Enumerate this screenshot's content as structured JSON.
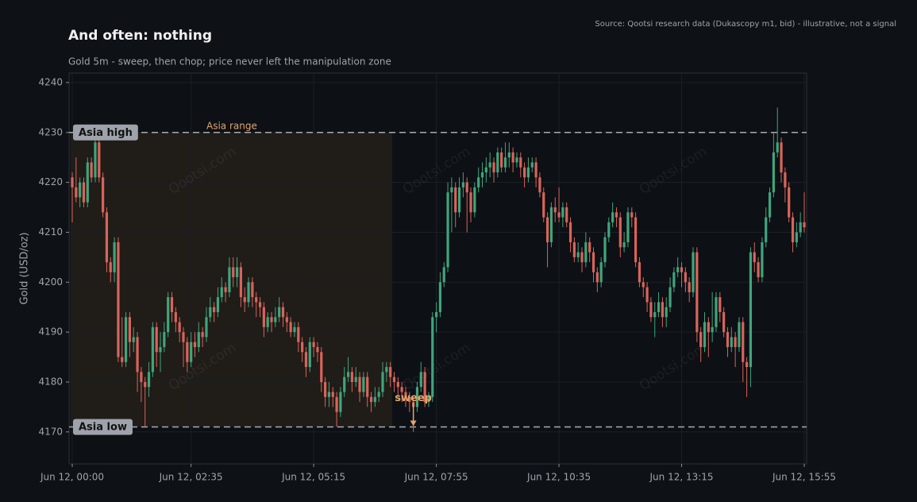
{
  "chart_data": {
    "type": "candlestick",
    "title": "And often: nothing",
    "subtitle": "Gold 5m - sweep, then chop; price never left the manipulation zone",
    "source": "Source: Qootsi research data (Dukascopy m1, bid) - illustrative, not a signal",
    "y_label": "Gold (USD/oz)",
    "watermark": "Qootsi.com",
    "up_color": "#3fa57c",
    "down_color": "#d9645a",
    "grid": true,
    "ylim": [
      4163.6,
      4241.9
    ],
    "yticks": [
      4170,
      4180,
      4190,
      4200,
      4210,
      4220,
      4230,
      4240
    ],
    "xticks": [
      "Jun 12, 00:00",
      "Jun 12, 02:35",
      "Jun 12, 05:15",
      "Jun 12, 07:55",
      "Jun 12, 10:35",
      "Jun 12, 13:15",
      "Jun 12, 15:55"
    ],
    "levels": [
      {
        "label": "Asia high",
        "value": 4230
      },
      {
        "label": "Asia low",
        "value": 4171
      }
    ],
    "shaded_range": {
      "label": "Asia range",
      "start": "Jun 12, 00:00",
      "end": "Jun 12, 07:00"
    },
    "annotations": [
      {
        "text": "sweep",
        "x": "Jun 12, 07:25",
        "y": 4171
      }
    ],
    "x": [
      "Jun 12, 00:00",
      "Jun 12, 00:05",
      "Jun 12, 00:10",
      "Jun 12, 00:15",
      "Jun 12, 00:20",
      "Jun 12, 00:25",
      "Jun 12, 00:30",
      "Jun 12, 00:35",
      "Jun 12, 00:40",
      "Jun 12, 00:45",
      "Jun 12, 00:50",
      "Jun 12, 00:55",
      "Jun 12, 01:00",
      "Jun 12, 01:05",
      "Jun 12, 01:10",
      "Jun 12, 01:15",
      "Jun 12, 01:20",
      "Jun 12, 01:25",
      "Jun 12, 01:30",
      "Jun 12, 01:35",
      "Jun 12, 01:40",
      "Jun 12, 01:45",
      "Jun 12, 01:50",
      "Jun 12, 01:55",
      "Jun 12, 02:00",
      "Jun 12, 02:05",
      "Jun 12, 02:10",
      "Jun 12, 02:15",
      "Jun 12, 02:20",
      "Jun 12, 02:25",
      "Jun 12, 02:30",
      "Jun 12, 02:35",
      "Jun 12, 02:40",
      "Jun 12, 02:45",
      "Jun 12, 02:50",
      "Jun 12, 02:55",
      "Jun 12, 03:00",
      "Jun 12, 03:05",
      "Jun 12, 03:10",
      "Jun 12, 03:15",
      "Jun 12, 03:20",
      "Jun 12, 03:25",
      "Jun 12, 03:30",
      "Jun 12, 03:35",
      "Jun 12, 03:40",
      "Jun 12, 03:45",
      "Jun 12, 03:50",
      "Jun 12, 03:55",
      "Jun 12, 04:00",
      "Jun 12, 04:05",
      "Jun 12, 04:10",
      "Jun 12, 04:15",
      "Jun 12, 04:20",
      "Jun 12, 04:25",
      "Jun 12, 04:30",
      "Jun 12, 04:35",
      "Jun 12, 04:40",
      "Jun 12, 04:45",
      "Jun 12, 04:50",
      "Jun 12, 04:55",
      "Jun 12, 05:00",
      "Jun 12, 05:05",
      "Jun 12, 05:10",
      "Jun 12, 05:15",
      "Jun 12, 05:20",
      "Jun 12, 05:25",
      "Jun 12, 05:30",
      "Jun 12, 05:35",
      "Jun 12, 05:40",
      "Jun 12, 05:45",
      "Jun 12, 05:50",
      "Jun 12, 05:55",
      "Jun 12, 06:00",
      "Jun 12, 06:05",
      "Jun 12, 06:10",
      "Jun 12, 06:15",
      "Jun 12, 06:20",
      "Jun 12, 06:25",
      "Jun 12, 06:30",
      "Jun 12, 06:35",
      "Jun 12, 06:40",
      "Jun 12, 06:45",
      "Jun 12, 06:50",
      "Jun 12, 06:55",
      "Jun 12, 07:00",
      "Jun 12, 07:05",
      "Jun 12, 07:10",
      "Jun 12, 07:15",
      "Jun 12, 07:20",
      "Jun 12, 07:25",
      "Jun 12, 07:30",
      "Jun 12, 07:35",
      "Jun 12, 07:40",
      "Jun 12, 07:45",
      "Jun 12, 07:50",
      "Jun 12, 07:55",
      "Jun 12, 08:00",
      "Jun 12, 08:05",
      "Jun 12, 08:10",
      "Jun 12, 08:15",
      "Jun 12, 08:20",
      "Jun 12, 08:25",
      "Jun 12, 08:30",
      "Jun 12, 08:35",
      "Jun 12, 08:40",
      "Jun 12, 08:45",
      "Jun 12, 08:50",
      "Jun 12, 08:55",
      "Jun 12, 09:00",
      "Jun 12, 09:05",
      "Jun 12, 09:10",
      "Jun 12, 09:15",
      "Jun 12, 09:20",
      "Jun 12, 09:25",
      "Jun 12, 09:30",
      "Jun 12, 09:35",
      "Jun 12, 09:40",
      "Jun 12, 09:45",
      "Jun 12, 09:50",
      "Jun 12, 09:55",
      "Jun 12, 10:00",
      "Jun 12, 10:05",
      "Jun 12, 10:10",
      "Jun 12, 10:15",
      "Jun 12, 10:20",
      "Jun 12, 10:25",
      "Jun 12, 10:30",
      "Jun 12, 10:35",
      "Jun 12, 10:40",
      "Jun 12, 10:45",
      "Jun 12, 10:50",
      "Jun 12, 10:55",
      "Jun 12, 11:00",
      "Jun 12, 11:05",
      "Jun 12, 11:10",
      "Jun 12, 11:15",
      "Jun 12, 11:20",
      "Jun 12, 11:25",
      "Jun 12, 11:30",
      "Jun 12, 11:35",
      "Jun 12, 11:40",
      "Jun 12, 11:45",
      "Jun 12, 11:50",
      "Jun 12, 11:55",
      "Jun 12, 12:00",
      "Jun 12, 12:05",
      "Jun 12, 12:10",
      "Jun 12, 12:15",
      "Jun 12, 12:20",
      "Jun 12, 12:25",
      "Jun 12, 12:30",
      "Jun 12, 12:35",
      "Jun 12, 12:40",
      "Jun 12, 12:45",
      "Jun 12, 12:50",
      "Jun 12, 12:55",
      "Jun 12, 13:00",
      "Jun 12, 13:05",
      "Jun 12, 13:10",
      "Jun 12, 13:15",
      "Jun 12, 13:20",
      "Jun 12, 13:25",
      "Jun 12, 13:30",
      "Jun 12, 13:35",
      "Jun 12, 13:40",
      "Jun 12, 13:45",
      "Jun 12, 13:50",
      "Jun 12, 13:55",
      "Jun 12, 14:00",
      "Jun 12, 14:05",
      "Jun 12, 14:10",
      "Jun 12, 14:15",
      "Jun 12, 14:20",
      "Jun 12, 14:25",
      "Jun 12, 14:30",
      "Jun 12, 14:35",
      "Jun 12, 14:40",
      "Jun 12, 14:45",
      "Jun 12, 14:50",
      "Jun 12, 14:55",
      "Jun 12, 15:00",
      "Jun 12, 15:05",
      "Jun 12, 15:10",
      "Jun 12, 15:15",
      "Jun 12, 15:20",
      "Jun 12, 15:25",
      "Jun 12, 15:30",
      "Jun 12, 15:35",
      "Jun 12, 15:40",
      "Jun 12, 15:45",
      "Jun 12, 15:50",
      "Jun 12, 15:55"
    ],
    "open": [
      4221,
      4219,
      4217,
      4220,
      4216,
      4224,
      4221,
      4228,
      4221,
      4214,
      4204,
      4202,
      4208,
      4185,
      4184,
      4193,
      4188,
      4189,
      4182,
      4180,
      4179,
      4182,
      4191,
      4186,
      4187,
      4190,
      4197,
      4194,
      4192,
      4190,
      4188,
      4184,
      4188,
      4187,
      4190,
      4189,
      4193,
      4195,
      4194,
      4197,
      4199,
      4198,
      4203,
      4201,
      4203,
      4197,
      4196,
      4200,
      4197,
      4196,
      4195,
      4191,
      4193,
      4192,
      4193,
      4195,
      4193,
      4192,
      4190,
      4191,
      4188,
      4186,
      4183,
      4188,
      4187,
      4186,
      4180,
      4177,
      4178,
      4177,
      4174,
      4178,
      4181,
      4182,
      4180,
      4181,
      4178,
      4181,
      4177,
      4176,
      4177,
      4178,
      4182,
      4183,
      4181,
      4180,
      4179,
      4178,
      4177,
      4176,
      4175,
      4179,
      4182,
      4176,
      4177,
      4193,
      4194,
      4200,
      4203,
      4218,
      4219,
      4214,
      4219,
      4220,
      4218,
      4214,
      4219,
      4221,
      4222,
      4223,
      4224,
      4222,
      4226,
      4223,
      4225,
      4226,
      4224,
      4225,
      4223,
      4221,
      4223,
      4224,
      4221,
      4218,
      4213,
      4208,
      4215,
      4214,
      4213,
      4215,
      4212,
      4208,
      4205,
      4206,
      4204,
      4208,
      4206,
      4202,
      4200,
      4204,
      4209,
      4212,
      4214,
      4213,
      4207,
      4208,
      4214,
      4213,
      4204,
      4200,
      4199,
      4196,
      4193,
      4194,
      4196,
      4193,
      4195,
      4199,
      4202,
      4203,
      4202,
      4200,
      4198,
      4206,
      4190,
      4187,
      4192,
      4190,
      4191,
      4197,
      4194,
      4190,
      4187,
      4189,
      4187,
      4192,
      4184,
      4183,
      4206,
      4204,
      4201,
      4208,
      4213,
      4218,
      4226,
      4228,
      4222,
      4219,
      4213,
      4208,
      4210,
      4212
    ],
    "high": [
      4222,
      4225,
      4221,
      4221,
      4225,
      4225,
      4231,
      4229,
      4222,
      4215,
      4205,
      4209,
      4209,
      4193,
      4194,
      4194,
      4191,
      4190,
      4183,
      4181,
      4184,
      4192,
      4192,
      4190,
      4192,
      4198,
      4198,
      4195,
      4193,
      4191,
      4189,
      4190,
      4190,
      4192,
      4191,
      4195,
      4197,
      4196,
      4199,
      4201,
      4200,
      4205,
      4205,
      4205,
      4204,
      4199,
      4201,
      4201,
      4198,
      4197,
      4196,
      4194,
      4194,
      4195,
      4197,
      4196,
      4194,
      4193,
      4192,
      4192,
      4189,
      4187,
      4189,
      4189,
      4188,
      4187,
      4181,
      4180,
      4179,
      4178,
      4179,
      4183,
      4185,
      4183,
      4183,
      4182,
      4182,
      4182,
      4178,
      4179,
      4179,
      4184,
      4184,
      4184,
      4182,
      4181,
      4180,
      4179,
      4178,
      4177,
      4180,
      4184,
      4183,
      4178,
      4194,
      4196,
      4202,
      4204,
      4220,
      4221,
      4220,
      4221,
      4222,
      4221,
      4219,
      4220,
      4223,
      4224,
      4225,
      4226,
      4225,
      4227,
      4227,
      4228,
      4228,
      4227,
      4226,
      4226,
      4224,
      4225,
      4225,
      4225,
      4222,
      4219,
      4214,
      4216,
      4217,
      4219,
      4216,
      4216,
      4213,
      4209,
      4208,
      4207,
      4210,
      4209,
      4207,
      4203,
      4205,
      4210,
      4213,
      4216,
      4215,
      4214,
      4210,
      4215,
      4215,
      4214,
      4205,
      4201,
      4200,
      4197,
      4196,
      4198,
      4197,
      4197,
      4201,
      4203,
      4205,
      4204,
      4203,
      4201,
      4207,
      4207,
      4191,
      4194,
      4193,
      4198,
      4198,
      4198,
      4195,
      4191,
      4191,
      4190,
      4193,
      4193,
      4185,
      4207,
      4208,
      4205,
      4209,
      4215,
      4219,
      4230,
      4235,
      4229,
      4223,
      4220,
      4214,
      4212,
      4214,
      4218
    ],
    "low": [
      4212,
      4216,
      4215,
      4215,
      4215,
      4220,
      4220,
      4220,
      4213,
      4202,
      4200,
      4200,
      4184,
      4183,
      4183,
      4185,
      4186,
      4178,
      4176,
      4171,
      4177,
      4181,
      4183,
      4182,
      4186,
      4189,
      4192,
      4190,
      4188,
      4183,
      4182,
      4183,
      4185,
      4186,
      4187,
      4188,
      4192,
      4192,
      4193,
      4196,
      4196,
      4197,
      4199,
      4199,
      4195,
      4194,
      4195,
      4195,
      4193,
      4193,
      4189,
      4190,
      4190,
      4191,
      4192,
      4191,
      4190,
      4189,
      4189,
      4186,
      4184,
      4181,
      4182,
      4185,
      4184,
      4178,
      4175,
      4175,
      4175,
      4171,
      4173,
      4177,
      4180,
      4178,
      4179,
      4176,
      4177,
      4175,
      4174,
      4175,
      4176,
      4177,
      4180,
      4179,
      4178,
      4177,
      4176,
      4175,
      4174,
      4170,
      4174,
      4178,
      4175,
      4175,
      4176,
      4190,
      4193,
      4199,
      4202,
      4210,
      4211,
      4213,
      4217,
      4210,
      4212,
      4213,
      4218,
      4219,
      4220,
      4221,
      4220,
      4221,
      4222,
      4222,
      4223,
      4222,
      4223,
      4221,
      4219,
      4220,
      4222,
      4219,
      4217,
      4212,
      4203,
      4207,
      4212,
      4212,
      4211,
      4211,
      4206,
      4204,
      4204,
      4202,
      4203,
      4204,
      4200,
      4198,
      4199,
      4203,
      4208,
      4211,
      4211,
      4205,
      4206,
      4207,
      4211,
      4203,
      4199,
      4197,
      4194,
      4192,
      4189,
      4193,
      4191,
      4191,
      4194,
      4198,
      4201,
      4199,
      4198,
      4196,
      4197,
      4188,
      4184,
      4186,
      4185,
      4188,
      4190,
      4192,
      4189,
      4185,
      4186,
      4183,
      4186,
      4180,
      4177,
      4179,
      4202,
      4200,
      4200,
      4207,
      4212,
      4217,
      4225,
      4220,
      4216,
      4212,
      4206,
      4207,
      4209,
      4210
    ],
    "close": [
      4219,
      4217,
      4220,
      4216,
      4224,
      4221,
      4228,
      4221,
      4214,
      4204,
      4202,
      4208,
      4185,
      4184,
      4193,
      4188,
      4189,
      4182,
      4180,
      4179,
      4182,
      4191,
      4186,
      4187,
      4190,
      4197,
      4194,
      4192,
      4190,
      4188,
      4184,
      4188,
      4187,
      4190,
      4189,
      4193,
      4195,
      4194,
      4197,
      4199,
      4198,
      4203,
      4201,
      4203,
      4197,
      4196,
      4200,
      4197,
      4196,
      4195,
      4191,
      4193,
      4192,
      4193,
      4195,
      4193,
      4192,
      4190,
      4191,
      4188,
      4186,
      4183,
      4188,
      4187,
      4186,
      4180,
      4177,
      4178,
      4177,
      4174,
      4178,
      4181,
      4182,
      4180,
      4181,
      4178,
      4181,
      4177,
      4176,
      4177,
      4178,
      4182,
      4183,
      4181,
      4180,
      4179,
      4178,
      4177,
      4176,
      4175,
      4179,
      4182,
      4176,
      4177,
      4193,
      4194,
      4200,
      4203,
      4218,
      4219,
      4214,
      4219,
      4220,
      4218,
      4214,
      4219,
      4221,
      4222,
      4223,
      4224,
      4222,
      4226,
      4223,
      4225,
      4226,
      4224,
      4225,
      4223,
      4221,
      4223,
      4224,
      4221,
      4218,
      4213,
      4208,
      4215,
      4214,
      4213,
      4215,
      4212,
      4208,
      4205,
      4206,
      4204,
      4208,
      4206,
      4202,
      4200,
      4204,
      4209,
      4212,
      4214,
      4213,
      4207,
      4208,
      4214,
      4213,
      4204,
      4200,
      4199,
      4196,
      4193,
      4194,
      4196,
      4193,
      4195,
      4199,
      4202,
      4203,
      4202,
      4200,
      4198,
      4206,
      4190,
      4187,
      4192,
      4190,
      4191,
      4197,
      4194,
      4190,
      4187,
      4189,
      4187,
      4192,
      4184,
      4183,
      4206,
      4204,
      4201,
      4208,
      4213,
      4218,
      4226,
      4228,
      4222,
      4219,
      4213,
      4208,
      4210,
      4212,
      4211
    ]
  }
}
